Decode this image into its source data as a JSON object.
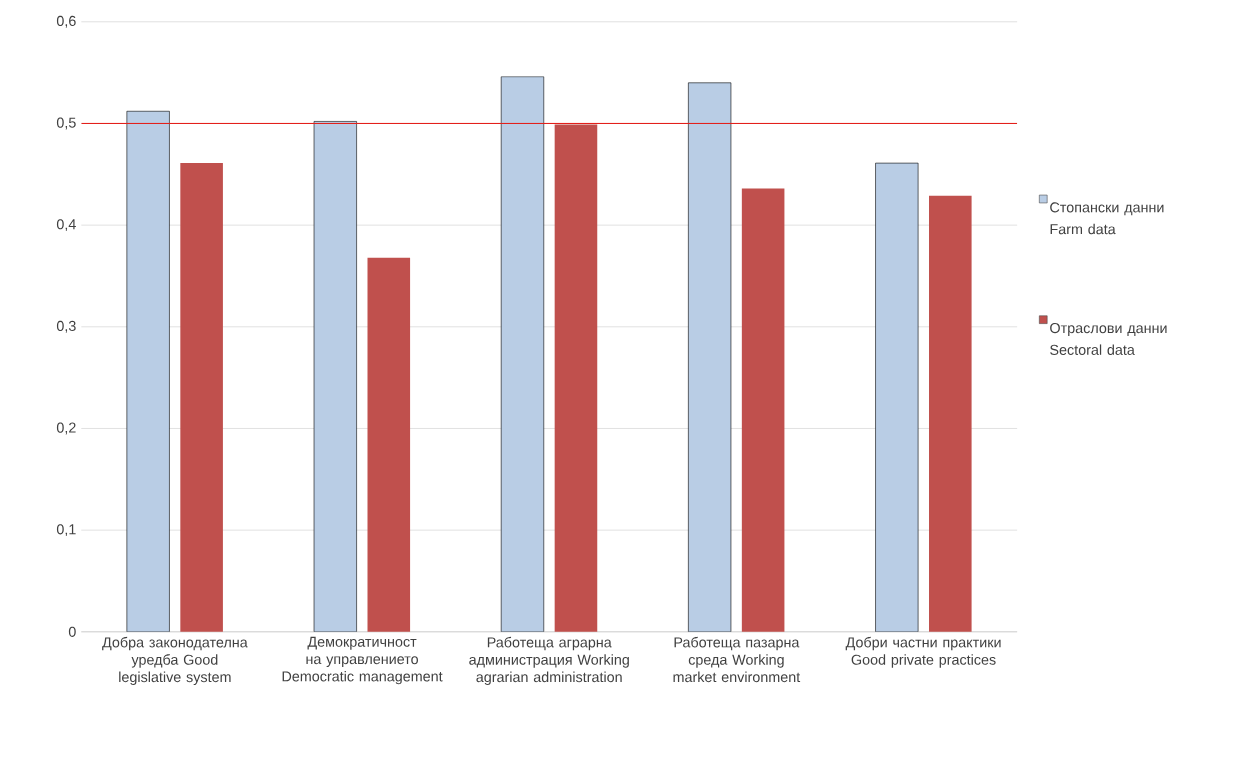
{
  "chart_data": {
    "type": "bar",
    "categories": [
      "Добра законодателна уредба Good legislative system",
      "Демократичност на управлението Democratic management",
      "Работеща аграрна администрация Working agrarian administration",
      "Работеща пазарна среда Working market environment",
      "Добри частни практики Good private practices"
    ],
    "series": [
      {
        "name": "Стопански данни Farm data",
        "color": "#b9cde5",
        "values": [
          0.512,
          0.502,
          0.546,
          0.54,
          0.461
        ]
      },
      {
        "name": "Отраслови данни Sectoral data",
        "color": "#c0504d",
        "values": [
          0.461,
          0.368,
          0.499,
          0.436,
          0.429
        ]
      }
    ],
    "ylim": [
      0,
      0.6
    ],
    "yticks": [
      0,
      {
        "value": 0.1,
        "label": "0,1"
      },
      {
        "value": 0.2,
        "label": "0,2"
      },
      {
        "value": 0.3,
        "label": "0,3"
      },
      {
        "value": 0.4,
        "label": "0,4"
      },
      {
        "value": 0.5,
        "label": "0,5"
      },
      {
        "value": 0.6,
        "label": "0,6"
      }
    ],
    "ref_lines": [
      {
        "axis": "y",
        "value": 0.5,
        "color": "#e3201b"
      }
    ],
    "grid": "y",
    "legend": "right"
  }
}
